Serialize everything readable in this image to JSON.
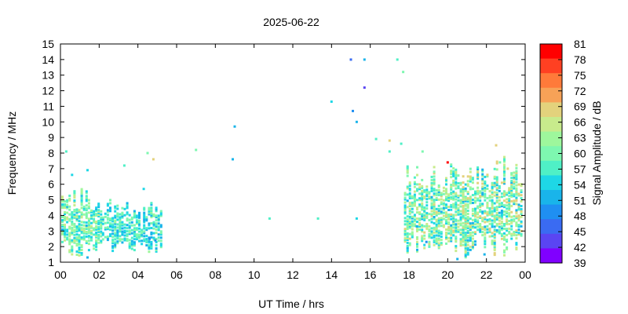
{
  "chart_data": {
    "type": "scatter",
    "title": "2025-06-22",
    "xlabel": "UT Time / hrs",
    "ylabel": "Frequency / MHz",
    "xlim": [
      0,
      24
    ],
    "ylim": [
      1,
      15
    ],
    "x_ticks": [
      "00",
      "02",
      "04",
      "06",
      "08",
      "10",
      "12",
      "14",
      "16",
      "18",
      "20",
      "22",
      "00"
    ],
    "y_ticks": [
      "1",
      "2",
      "3",
      "4",
      "5",
      "6",
      "7",
      "8",
      "9",
      "10",
      "11",
      "12",
      "13",
      "14",
      "15"
    ],
    "grid": false,
    "colorbar": {
      "label": "Signal Amplitude / dB",
      "ticks": [
        "81",
        "78",
        "75",
        "72",
        "69",
        "66",
        "63",
        "60",
        "57",
        "54",
        "51",
        "48",
        "45",
        "42",
        "39"
      ],
      "range": [
        39,
        81
      ],
      "colors": [
        "#ff0000",
        "#ff4022",
        "#ff7a3a",
        "#f7a257",
        "#e3d27c",
        "#c8eb8c",
        "#9ef79c",
        "#7ef7b0",
        "#4ff0c6",
        "#1ed7e6",
        "#19b4ea",
        "#1f8ff2",
        "#3a6bf2",
        "#5a45f2",
        "#8000ff"
      ]
    },
    "series": [
      {
        "points": [
          {
            "x": 0.3,
            "y": 8.1,
            "db": 58
          },
          {
            "x": 4.5,
            "y": 8.0,
            "db": 60
          },
          {
            "x": 4.8,
            "y": 7.6,
            "db": 70
          },
          {
            "x": 3.3,
            "y": 7.2,
            "db": 57
          },
          {
            "x": 1.4,
            "y": 6.9,
            "db": 55
          },
          {
            "x": 0.6,
            "y": 6.6,
            "db": 53
          },
          {
            "x": 4.3,
            "y": 5.7,
            "db": 53
          },
          {
            "x": 7.0,
            "y": 8.2,
            "db": 60
          },
          {
            "x": 8.9,
            "y": 7.6,
            "db": 51
          },
          {
            "x": 9.0,
            "y": 9.7,
            "db": 50
          },
          {
            "x": 10.8,
            "y": 3.8,
            "db": 58
          },
          {
            "x": 13.3,
            "y": 3.8,
            "db": 57
          },
          {
            "x": 14.0,
            "y": 11.3,
            "db": 53
          },
          {
            "x": 15.0,
            "y": 14.0,
            "db": 44
          },
          {
            "x": 15.7,
            "y": 14.0,
            "db": 52
          },
          {
            "x": 15.7,
            "y": 12.2,
            "db": 43
          },
          {
            "x": 15.1,
            "y": 10.7,
            "db": 49
          },
          {
            "x": 15.3,
            "y": 10.0,
            "db": 52
          },
          {
            "x": 15.3,
            "y": 3.8,
            "db": 53
          },
          {
            "x": 16.3,
            "y": 8.9,
            "db": 56
          },
          {
            "x": 17.0,
            "y": 8.1,
            "db": 58
          },
          {
            "x": 17.0,
            "y": 8.8,
            "db": 70
          },
          {
            "x": 17.4,
            "y": 14.0,
            "db": 57
          },
          {
            "x": 17.7,
            "y": 13.2,
            "db": 59
          },
          {
            "x": 17.6,
            "y": 8.6,
            "db": 58
          },
          {
            "x": 18.7,
            "y": 8.1,
            "db": 61
          },
          {
            "x": 20.0,
            "y": 7.4,
            "db": 80
          },
          {
            "x": 22.5,
            "y": 8.5,
            "db": 70
          },
          {
            "x": 22.7,
            "y": 7.4,
            "db": 61
          },
          {
            "x": 23.1,
            "y": 7.0,
            "db": 69
          },
          {
            "x": 4.6,
            "y": 2.5,
            "db": 49
          },
          {
            "x": 4.9,
            "y": 2.4,
            "db": 48
          },
          {
            "x": 1.4,
            "y": 1.3,
            "db": 50
          },
          {
            "x": 1.9,
            "y": 1.1,
            "db": 49
          },
          {
            "x": 18.4,
            "y": 3.3,
            "db": 50
          },
          {
            "x": 18.9,
            "y": 2.3,
            "db": 47
          },
          {
            "x": 20.5,
            "y": 1.2,
            "db": 52
          },
          {
            "x": 21.9,
            "y": 1.5,
            "db": 50
          }
        ]
      }
    ],
    "clusters": [
      {
        "x_range": [
          0.1,
          2.2
        ],
        "y_range": [
          1.3,
          5.8
        ],
        "db_range": [
          52,
          66
        ]
      },
      {
        "x_range": [
          2.2,
          5.3
        ],
        "y_range": [
          1.6,
          5.1
        ],
        "db_range": [
          50,
          62
        ]
      },
      {
        "x_range": [
          17.8,
          21.0
        ],
        "y_range": [
          1.6,
          7.5
        ],
        "db_range": [
          52,
          68
        ]
      },
      {
        "x_range": [
          20.8,
          23.9
        ],
        "y_range": [
          1.3,
          7.8
        ],
        "db_range": [
          51,
          70
        ]
      }
    ]
  }
}
